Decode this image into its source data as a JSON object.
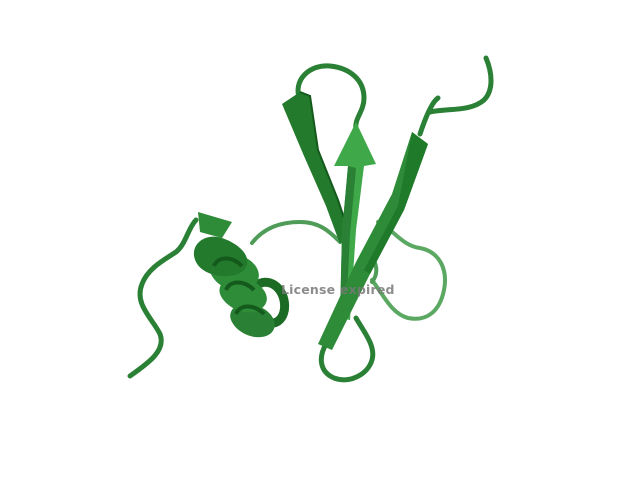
{
  "viewer": {
    "watermark_text": "License expired"
  },
  "colors": {
    "background": "#ffffff",
    "ribbon_dark": "#1f7a2a",
    "ribbon_mid": "#2e8b37",
    "ribbon_light": "#3fa848",
    "ribbon_back": "#5aa862",
    "watermark": "#7a7a7a"
  },
  "scene": {
    "subject": "protein-cartoon-ribbon",
    "elements": [
      "alpha-helix",
      "beta-strand-arrow",
      "beta-strand-arrow",
      "beta-strand-arrow",
      "loop-coil"
    ]
  }
}
